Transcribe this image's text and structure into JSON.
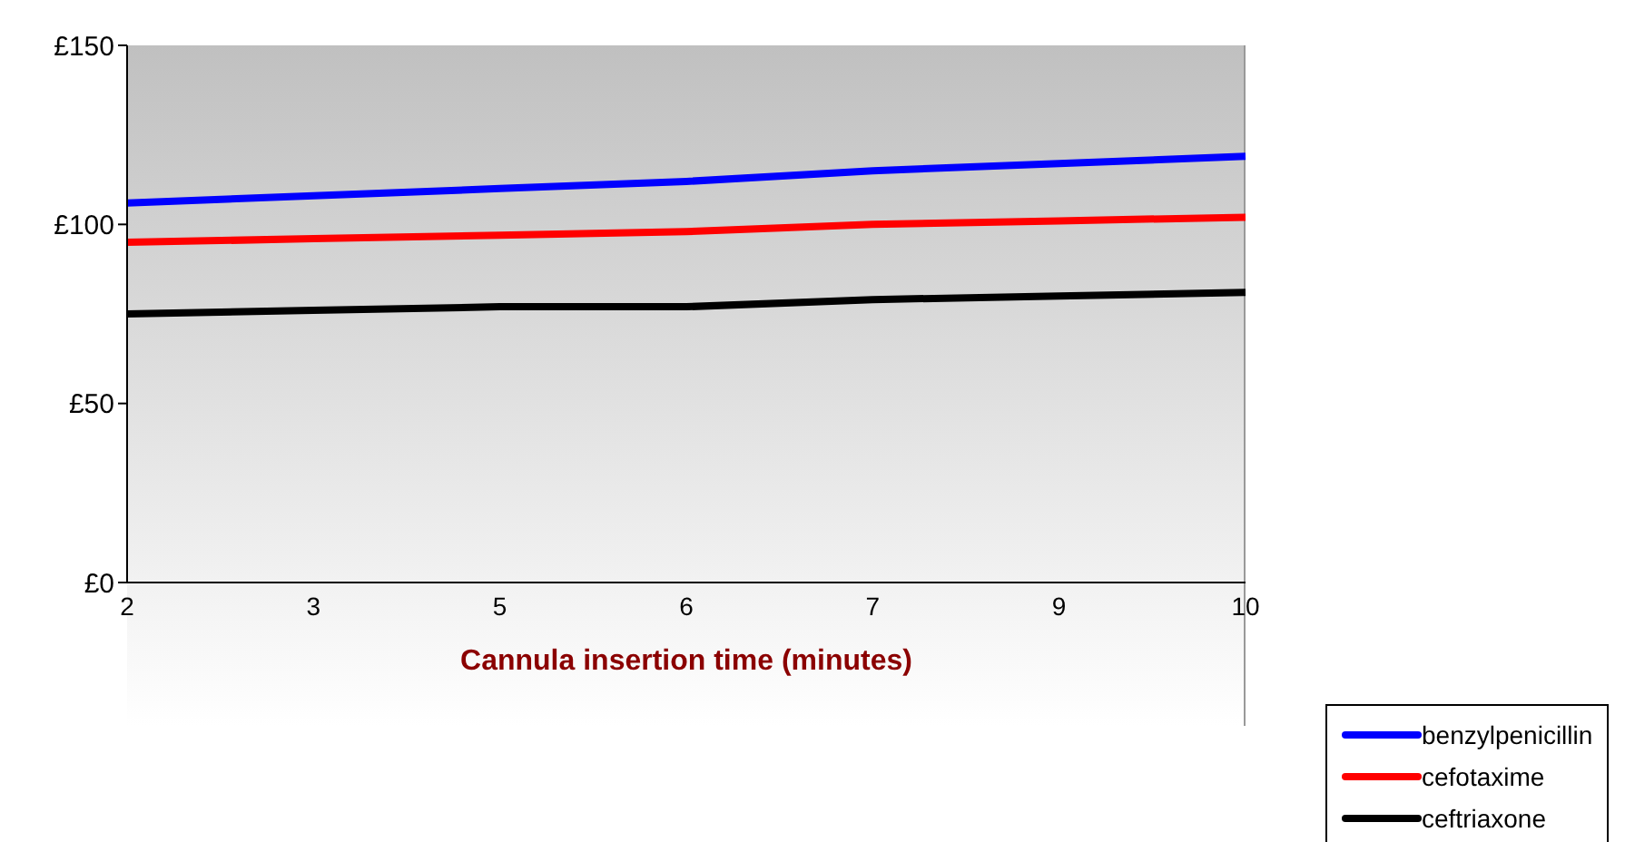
{
  "chart_data": {
    "type": "line",
    "xlabel": "Cannula insertion time (minutes)",
    "categories": [
      "2",
      "3",
      "5",
      "6",
      "7",
      "9",
      "10"
    ],
    "series": [
      {
        "name": "benzylpenicillin",
        "color": "#0000ff",
        "values": [
          106,
          108,
          110,
          112,
          115,
          117,
          119
        ]
      },
      {
        "name": "cefotaxime",
        "color": "#ff0000",
        "values": [
          95,
          96,
          97,
          98,
          100,
          101,
          102
        ]
      },
      {
        "name": "ceftriaxone",
        "color": "#000000",
        "values": [
          75,
          76,
          77,
          77,
          79,
          80,
          81
        ]
      }
    ],
    "ylim": [
      0,
      150
    ],
    "yticks": [
      {
        "value": 0,
        "label": "£0"
      },
      {
        "value": 50,
        "label": "£50"
      },
      {
        "value": 100,
        "label": "£100"
      },
      {
        "value": 150,
        "label": "£150"
      }
    ],
    "legend": "bottom right",
    "marker": "none",
    "line_style": "solid"
  }
}
